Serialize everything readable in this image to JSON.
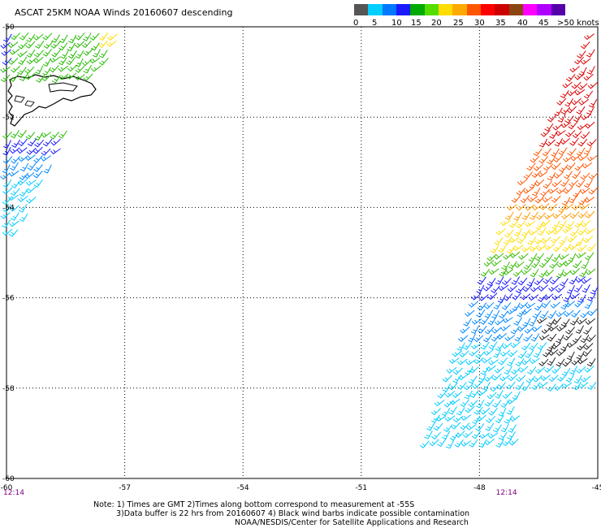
{
  "title": "ASCAT 25KM NOAA Winds 20160607 descending",
  "colorbar": {
    "labels": [
      "0",
      "5",
      "10",
      "15",
      "20",
      "25",
      "30",
      "35",
      "40",
      "45",
      ">50 knots"
    ],
    "colors": [
      "#555555",
      "#00cfff",
      "#0077ff",
      "#1a1aff",
      "#00aa00",
      "#55dd00",
      "#ffdd00",
      "#ffaa00",
      "#ff5500",
      "#ff0000",
      "#cc0000",
      "#8b4513",
      "#ff00ff",
      "#b000ff",
      "#5500aa"
    ]
  },
  "map": {
    "lon_labels": [
      "-60",
      "-57",
      "-54",
      "-51",
      "-48",
      "-45"
    ],
    "lat_labels": [
      "-50",
      "-52",
      "-54",
      "-56",
      "-58",
      "-60"
    ],
    "lon_range": [
      -60,
      -45
    ],
    "lat_range": [
      -60,
      -50
    ],
    "times": [
      "12:14",
      "12:14"
    ],
    "time_lons": [
      -60,
      -47.5
    ]
  },
  "notes": {
    "line1": "Note: 1) Times are GMT 2)Times along bottom correspond to measurement at -55S",
    "line2": "3)Data buffer is 22 hrs from 20160607 4) Black wind barbs indicate possible contamination",
    "line3": "NOAA/NESDIS/Center for Satellite Applications and Research"
  }
}
